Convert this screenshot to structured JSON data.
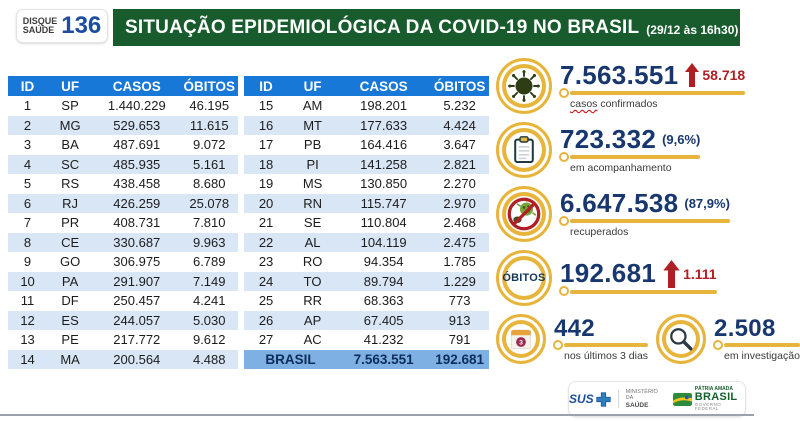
{
  "header": {
    "logo_line1": "DISQUE",
    "logo_line2": "SAÚDE",
    "logo_number": "136",
    "title": "SITUAÇÃO EPIDEMIOLÓGICA DA COVID-19 NO BRASIL",
    "timestamp": "(29/12 às 16h30)"
  },
  "chart_data": {
    "type": "table",
    "title": "Situação epidemiológica da COVID-19 no Brasil (29/12 às 16h30)",
    "columns": [
      "ID",
      "UF",
      "CASOS",
      "ÓBITOS"
    ],
    "rows": [
      [
        "1",
        "SP",
        "1.440.229",
        "46.195"
      ],
      [
        "2",
        "MG",
        "529.653",
        "11.615"
      ],
      [
        "3",
        "BA",
        "487.691",
        "9.072"
      ],
      [
        "4",
        "SC",
        "485.935",
        "5.161"
      ],
      [
        "5",
        "RS",
        "438.458",
        "8.680"
      ],
      [
        "6",
        "RJ",
        "426.259",
        "25.078"
      ],
      [
        "7",
        "PR",
        "408.731",
        "7.810"
      ],
      [
        "8",
        "CE",
        "330.687",
        "9.963"
      ],
      [
        "9",
        "GO",
        "306.975",
        "6.789"
      ],
      [
        "10",
        "PA",
        "291.907",
        "7.149"
      ],
      [
        "11",
        "DF",
        "250.457",
        "4.241"
      ],
      [
        "12",
        "ES",
        "244.057",
        "5.030"
      ],
      [
        "13",
        "PE",
        "217.772",
        "9.612"
      ],
      [
        "14",
        "MA",
        "200.564",
        "4.488"
      ],
      [
        "15",
        "AM",
        "198.201",
        "5.232"
      ],
      [
        "16",
        "MT",
        "177.633",
        "4.424"
      ],
      [
        "17",
        "PB",
        "164.416",
        "3.647"
      ],
      [
        "18",
        "PI",
        "141.258",
        "2.821"
      ],
      [
        "19",
        "MS",
        "130.850",
        "2.270"
      ],
      [
        "20",
        "RN",
        "115.747",
        "2.970"
      ],
      [
        "21",
        "SE",
        "110.804",
        "2.468"
      ],
      [
        "22",
        "AL",
        "104.119",
        "2.475"
      ],
      [
        "23",
        "RO",
        "94.354",
        "1.785"
      ],
      [
        "24",
        "TO",
        "89.794",
        "1.229"
      ],
      [
        "25",
        "RR",
        "68.363",
        "773"
      ],
      [
        "26",
        "AP",
        "67.405",
        "913"
      ],
      [
        "27",
        "AC",
        "41.232",
        "791"
      ]
    ],
    "total_row": [
      "BRASIL",
      "7.563.551",
      "192.681"
    ],
    "split": {
      "left_rows": 14,
      "right_rows": 13
    },
    "summary": [
      {
        "label": "casos confirmados",
        "label_parts": [
          "casos",
          " confirmados"
        ],
        "value": "7.563.551",
        "delta": "58.718",
        "direction": "up"
      },
      {
        "label": "em acompanhamento",
        "value": "723.332",
        "percent": "(9,6%)"
      },
      {
        "label": "recuperados",
        "value": "6.647.538",
        "percent": "(87,9%)"
      },
      {
        "label": "óbitos",
        "icon_text": "ÓBITOS",
        "value": "192.681",
        "delta": "1.111",
        "direction": "up"
      },
      {
        "label": "nos últimos 3 dias",
        "value": "442",
        "badge": "3"
      },
      {
        "label": "em investigação",
        "value": "2.508"
      }
    ]
  },
  "footer": {
    "sus_label": "SUS",
    "ministry": [
      "MINISTÉRIO DA",
      "SAÚDE"
    ],
    "brand": [
      "PÁTRIA AMADA",
      "BRASIL",
      "GOVERNO FEDERAL"
    ]
  },
  "colors": {
    "title_green": "#185c2e",
    "table_header_blue": "#1878d8",
    "row_stripe_blue": "#d9e6f6",
    "total_row_blue": "#7fb0e3",
    "value_navy": "#17376e",
    "alert_red": "#b01f24",
    "accent_gold": "#e7b43c"
  }
}
